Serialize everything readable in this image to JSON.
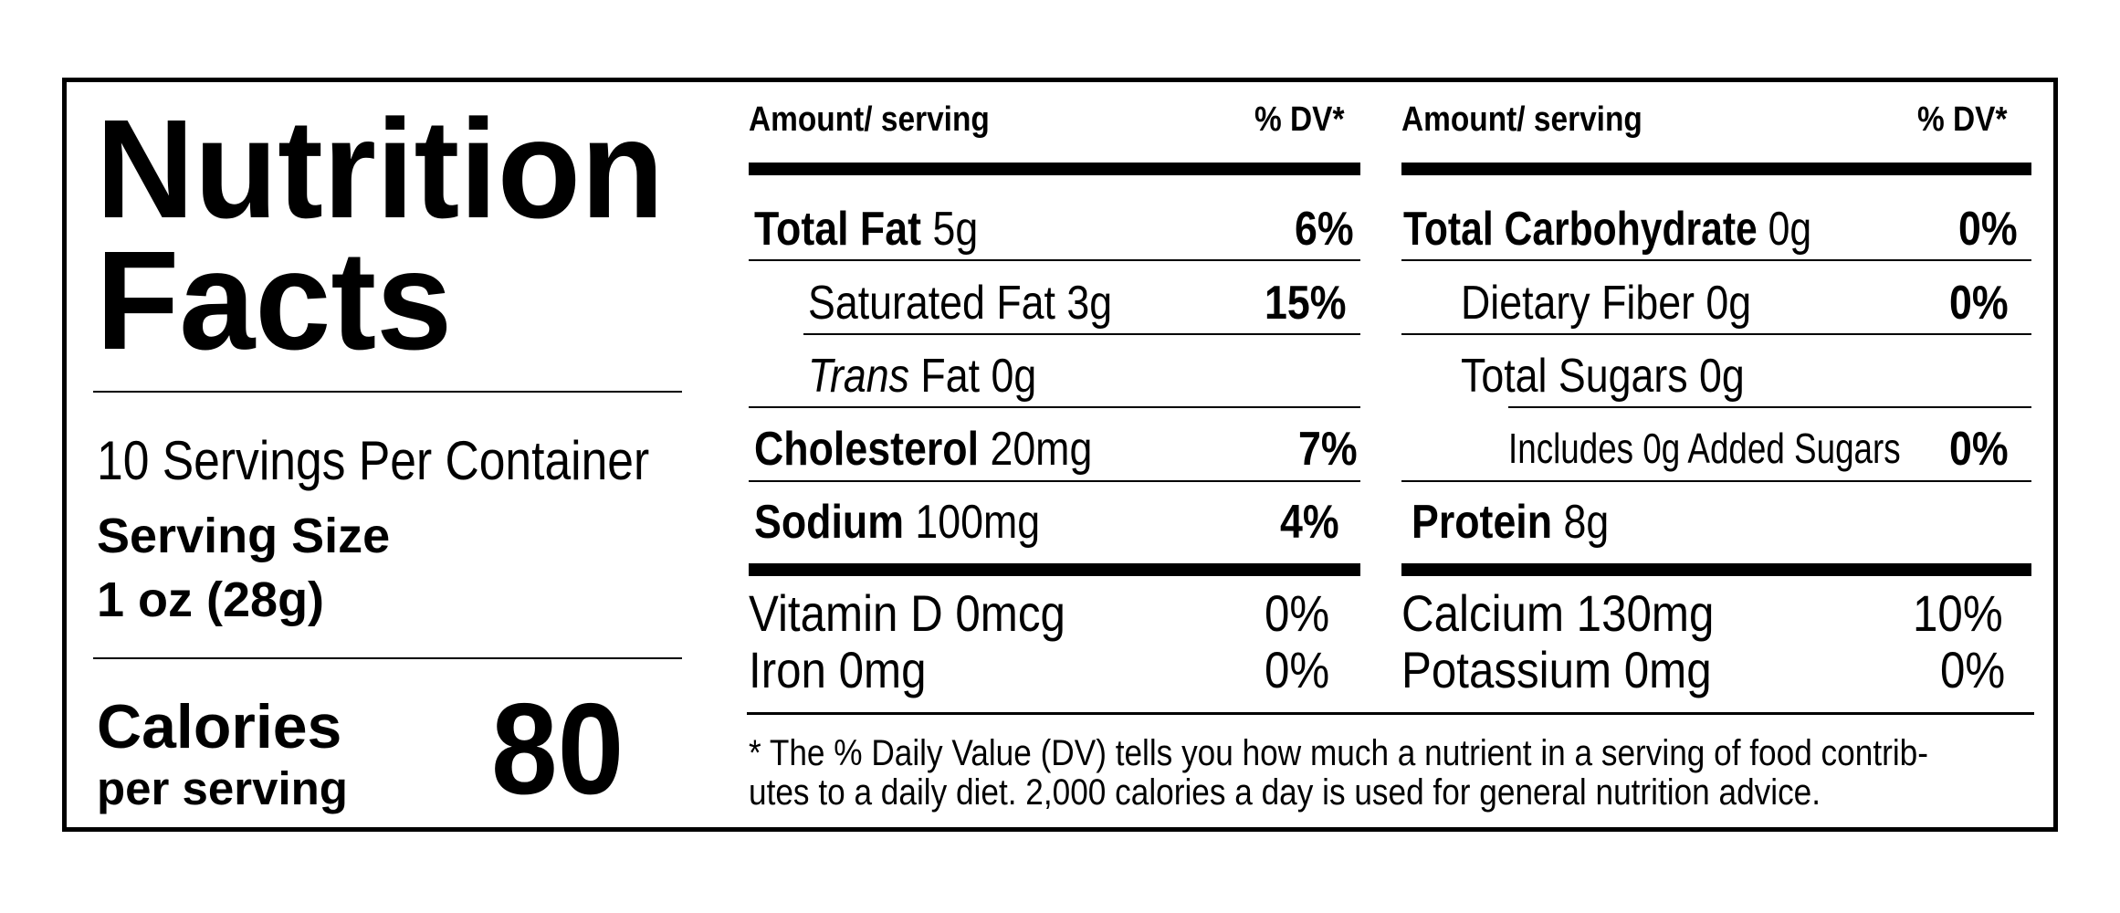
{
  "title": {
    "line1": "Nutrition",
    "line2": "Facts"
  },
  "servings": {
    "per_container": "10 Servings Per Container",
    "size_label": "Serving Size",
    "size_value": "1 oz (28g)"
  },
  "calories": {
    "label": "Calories",
    "sub": "per serving",
    "value": "80"
  },
  "left_column": {
    "header_amount": "Amount/ serving",
    "header_dv": "% DV*",
    "rows": [
      {
        "name": "Total Fat",
        "amount": "5g",
        "dv": "6%"
      },
      {
        "name": "Saturated Fat",
        "amount": "3g",
        "dv": "15%"
      },
      {
        "name": "Trans",
        "suffix": "Fat 0g",
        "dv": ""
      },
      {
        "name": "Cholesterol",
        "amount": "20mg",
        "dv": "7%"
      },
      {
        "name": "Sodium",
        "amount": "100mg",
        "dv": "4%"
      }
    ],
    "vitamins": [
      {
        "name": "Vitamin D 0mcg",
        "dv": "0%"
      },
      {
        "name": "Iron 0mg",
        "dv": "0%"
      }
    ]
  },
  "right_column": {
    "header_amount": "Amount/ serving",
    "header_dv": "% DV*",
    "rows": [
      {
        "name": "Total Carbohydrate",
        "amount": "0g",
        "dv": "0%"
      },
      {
        "name": "Dietary Fiber",
        "amount": "0g",
        "dv": "0%"
      },
      {
        "name": "Total Sugars",
        "amount": "0g",
        "dv": ""
      },
      {
        "name": "Includes 0g Added Sugars",
        "amount": "",
        "dv": "0%"
      },
      {
        "name": "Protein",
        "amount": "8g",
        "dv": ""
      }
    ],
    "minerals": [
      {
        "name": "Calcium 130mg",
        "dv": "10%"
      },
      {
        "name": "Potassium 0mg",
        "dv": "0%"
      }
    ]
  },
  "footnote": {
    "line1": "* The % Daily Value (DV) tells you how much a nutrient in a serving of food contrib-",
    "line2": "utes to a daily diet.  2,000 calories a day is used for general nutrition advice."
  }
}
